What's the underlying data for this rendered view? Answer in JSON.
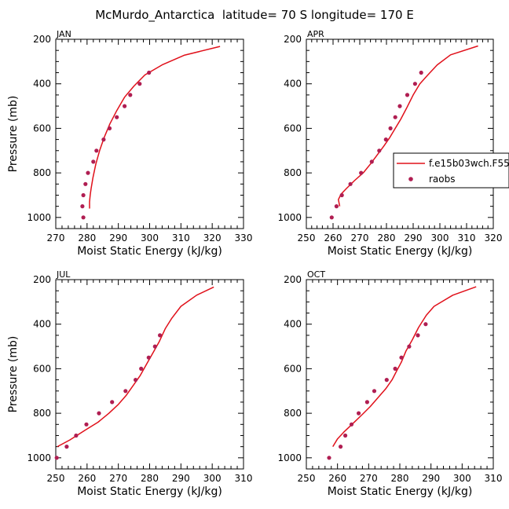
{
  "figure_title": "McMurdo_Antarctica  latitude= 70 S longitude= 170 E",
  "colors": {
    "model_line": "#e0101a",
    "obs_marker": "#b01e52",
    "axis": "#000000"
  },
  "legend": {
    "model_label": "f.e15b03wch.F55",
    "obs_label": "raobs",
    "placement": "inside APR panel, right edge"
  },
  "chart_data": [
    {
      "type": "line",
      "title": "JAN",
      "xlabel": "Moist Static Energy (kJ/kg)",
      "ylabel": "Pressure (mb)",
      "xlim": [
        270,
        330
      ],
      "xticks": [
        270,
        280,
        290,
        300,
        310,
        320,
        330
      ],
      "ylim": [
        1050,
        200
      ],
      "yticks": [
        200,
        400,
        600,
        800,
        1000
      ],
      "series": [
        {
          "name": "f.e15b03wch.F55",
          "kind": "line",
          "points": [
            [
              280.8,
              960
            ],
            [
              280.8,
              930
            ],
            [
              281,
              900
            ],
            [
              281.3,
              870
            ],
            [
              281.9,
              820
            ],
            [
              282.8,
              760
            ],
            [
              284,
              700
            ],
            [
              285.5,
              640
            ],
            [
              287.3,
              580
            ],
            [
              289.5,
              520
            ],
            [
              292,
              460
            ],
            [
              295,
              410
            ],
            [
              298.5,
              360
            ],
            [
              304,
              315
            ],
            [
              311,
              272
            ],
            [
              322.5,
              232
            ]
          ]
        },
        {
          "name": "raobs",
          "kind": "scatter",
          "points": [
            [
              278.8,
              1000
            ],
            [
              278.5,
              950
            ],
            [
              278.8,
              900
            ],
            [
              279.5,
              850
            ],
            [
              280.3,
              800
            ],
            [
              282,
              750
            ],
            [
              283,
              700
            ],
            [
              285.3,
              650
            ],
            [
              287.2,
              600
            ],
            [
              289.5,
              550
            ],
            [
              292,
              500
            ],
            [
              293.8,
              450
            ],
            [
              296.8,
              400
            ],
            [
              299.8,
              350
            ]
          ]
        }
      ]
    },
    {
      "type": "line",
      "title": "APR",
      "xlabel": "Moist Static Energy (kJ/kg)",
      "ylabel": "",
      "xlim": [
        250,
        320
      ],
      "xticks": [
        250,
        260,
        270,
        280,
        290,
        300,
        310,
        320
      ],
      "ylim": [
        1050,
        200
      ],
      "yticks": [
        200,
        400,
        600,
        800,
        1000
      ],
      "series": [
        {
          "name": "f.e15b03wch.F55",
          "kind": "line",
          "points": [
            [
              262.5,
              950
            ],
            [
              262,
              920
            ],
            [
              263,
              895
            ],
            [
              265,
              870
            ],
            [
              268,
              835
            ],
            [
              271.3,
              800
            ],
            [
              274,
              760
            ],
            [
              276.5,
              720
            ],
            [
              279,
              680
            ],
            [
              281.3,
              640
            ],
            [
              283.3,
              600
            ],
            [
              285.3,
              560
            ],
            [
              287.5,
              510
            ],
            [
              290,
              450
            ],
            [
              292.5,
              400
            ],
            [
              295.5,
              360
            ],
            [
              299,
              315
            ],
            [
              304,
              270
            ],
            [
              314.3,
              230
            ]
          ]
        },
        {
          "name": "raobs",
          "kind": "scatter",
          "points": [
            [
              259.5,
              1000
            ],
            [
              261.3,
              950
            ],
            [
              263.3,
              900
            ],
            [
              266.5,
              850
            ],
            [
              270.5,
              800
            ],
            [
              274.5,
              750
            ],
            [
              277.3,
              700
            ],
            [
              279.8,
              650
            ],
            [
              281.5,
              600
            ],
            [
              283.3,
              550
            ],
            [
              285,
              500
            ],
            [
              287.8,
              450
            ],
            [
              290.7,
              400
            ],
            [
              293,
              350
            ]
          ]
        }
      ]
    },
    {
      "type": "line",
      "title": "JUL",
      "xlabel": "Moist Static Energy (kJ/kg)",
      "ylabel": "Pressure (mb)",
      "xlim": [
        250,
        310
      ],
      "xticks": [
        250,
        260,
        270,
        280,
        290,
        300,
        310
      ],
      "ylim": [
        1050,
        200
      ],
      "yticks": [
        200,
        400,
        600,
        800,
        1000
      ],
      "series": [
        {
          "name": "f.e15b03wch.F55",
          "kind": "line",
          "points": [
            [
              250.5,
              950
            ],
            [
              254.5,
              920
            ],
            [
              259.5,
              875
            ],
            [
              263.5,
              840
            ],
            [
              267,
              800
            ],
            [
              270,
              760
            ],
            [
              272.5,
              720
            ],
            [
              275,
              670
            ],
            [
              277,
              630
            ],
            [
              279,
              580
            ],
            [
              281,
              530
            ],
            [
              283,
              480
            ],
            [
              285,
              420
            ],
            [
              287,
              375
            ],
            [
              290,
              320
            ],
            [
              295,
              270
            ],
            [
              300.5,
              233
            ]
          ]
        },
        {
          "name": "raobs",
          "kind": "scatter",
          "points": [
            [
              250.3,
              1000
            ],
            [
              253.5,
              950
            ],
            [
              256.5,
              900
            ],
            [
              259.8,
              850
            ],
            [
              263.8,
              800
            ],
            [
              268,
              750
            ],
            [
              272.3,
              700
            ],
            [
              275.5,
              650
            ],
            [
              277.3,
              600
            ],
            [
              279.7,
              550
            ],
            [
              281.7,
              500
            ],
            [
              283.3,
              450
            ]
          ]
        }
      ]
    },
    {
      "type": "line",
      "title": "OCT",
      "xlabel": "Moist Static Energy (kJ/kg)",
      "ylabel": "",
      "xlim": [
        250,
        310
      ],
      "xticks": [
        250,
        260,
        270,
        280,
        290,
        300,
        310
      ],
      "ylim": [
        1050,
        200
      ],
      "yticks": [
        200,
        400,
        600,
        800,
        1000
      ],
      "series": [
        {
          "name": "f.e15b03wch.F55",
          "kind": "line",
          "points": [
            [
              258.5,
              950
            ],
            [
              260,
              915
            ],
            [
              262,
              885
            ],
            [
              265,
              845
            ],
            [
              268,
              805
            ],
            [
              270.5,
              770
            ],
            [
              273,
              730
            ],
            [
              275.5,
              690
            ],
            [
              277.5,
              650
            ],
            [
              279,
              610
            ],
            [
              280.5,
              570
            ],
            [
              282,
              520
            ],
            [
              284,
              470
            ],
            [
              286,
              415
            ],
            [
              288.5,
              360
            ],
            [
              291,
              320
            ],
            [
              297,
              270
            ],
            [
              304.5,
              232
            ]
          ]
        },
        {
          "name": "raobs",
          "kind": "scatter",
          "points": [
            [
              257.3,
              1000
            ],
            [
              261,
              950
            ],
            [
              262.5,
              900
            ],
            [
              264.5,
              850
            ],
            [
              266.8,
              800
            ],
            [
              269.5,
              750
            ],
            [
              271.8,
              700
            ],
            [
              275.8,
              650
            ],
            [
              278.5,
              600
            ],
            [
              280.5,
              550
            ],
            [
              283,
              500
            ],
            [
              285.8,
              450
            ],
            [
              288.3,
              400
            ]
          ]
        }
      ]
    }
  ]
}
